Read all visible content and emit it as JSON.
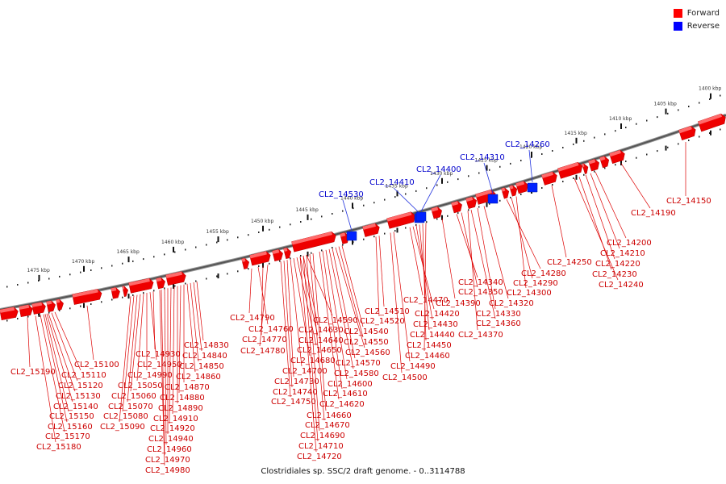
{
  "legend": {
    "forward_label": "Forward",
    "reverse_label": "Reverse",
    "forward_color": "#ff0000",
    "reverse_color": "#0000ff"
  },
  "caption": "Clostridiales sp. SSC/2 draft genome. - 0..3114788",
  "ruler_labels": [
    "1400 kbp",
    "1405 kbp",
    "1410 kbp",
    "1415 kbp",
    "1420 kbp",
    "1425 kbp",
    "1430 kbp",
    "1435 kbp",
    "1440 kbp",
    "1445 kbp",
    "1450 kbp",
    "1455 kbp",
    "1460 kbp",
    "1465 kbp",
    "1470 kbp",
    "1475 kbp"
  ],
  "reverse_genes": [
    "CL2_14260",
    "CL2_14310",
    "CL2_14400",
    "CL2_14410",
    "CL2_14530"
  ],
  "forward_genes": [
    "CL2_14150",
    "CL2_14190",
    "CL2_14200",
    "CL2_14210",
    "CL2_14220",
    "CL2_14230",
    "CL2_14240",
    "CL2_14250",
    "CL2_14280",
    "CL2_14290",
    "CL2_14300",
    "CL2_14320",
    "CL2_14330",
    "CL2_14340",
    "CL2_14350",
    "CL2_14360",
    "CL2_14370",
    "CL2_14390",
    "CL2_14420",
    "CL2_14430",
    "CL2_14440",
    "CL2_14450",
    "CL2_14460",
    "CL2_14470",
    "CL2_14490",
    "CL2_14500",
    "CL2_14510",
    "CL2_14520",
    "CL2_14540",
    "CL2_14550",
    "CL2_14560",
    "CL2_14570",
    "CL2_14580",
    "CL2_14590",
    "CL2_14600",
    "CL2_14610",
    "CL2_14620",
    "CL2_14630",
    "CL2_14640",
    "CL2_14650",
    "CL2_14660",
    "CL2_14670",
    "CL2_14680",
    "CL2_14690",
    "CL2_14700",
    "CL2_14710",
    "CL2_14720",
    "CL2_14730",
    "CL2_14740",
    "CL2_14750",
    "CL2_14760",
    "CL2_14770",
    "CL2_14780",
    "CL2_14790",
    "CL2_14830",
    "CL2_14840",
    "CL2_14850",
    "CL2_14860",
    "CL2_14870",
    "CL2_14880",
    "CL2_14890",
    "CL2_14910",
    "CL2_14920",
    "CL2_14930",
    "CL2_14940",
    "CL2_14950",
    "CL2_14960",
    "CL2_14970",
    "CL2_14980",
    "CL2_14990",
    "CL2_15050",
    "CL2_15060",
    "CL2_15070",
    "CL2_15080",
    "CL2_15090",
    "CL2_15100",
    "CL2_15110",
    "CL2_15120",
    "CL2_15130",
    "CL2_15140",
    "CL2_15150",
    "CL2_15160",
    "CL2_15170",
    "CL2_15180",
    "CL2_15190"
  ]
}
